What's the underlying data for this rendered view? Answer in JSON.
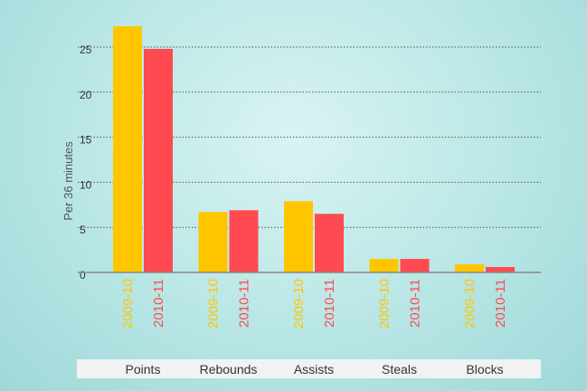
{
  "chart_data": {
    "type": "bar",
    "ylabel": "Per 36 minutes",
    "ylim": [
      0,
      25
    ],
    "yticks": [
      0,
      5,
      10,
      15,
      20,
      25
    ],
    "grid": true,
    "categories": [
      "Points",
      "Rebounds",
      "Assists",
      "Steals",
      "Blocks"
    ],
    "series": [
      {
        "name": "2009-10",
        "color": "#ffc600",
        "values": [
          27.3,
          6.7,
          7.9,
          1.5,
          0.9
        ]
      },
      {
        "name": "2010-11",
        "color": "#ff4a52",
        "values": [
          24.8,
          6.9,
          6.5,
          1.5,
          0.6
        ]
      }
    ]
  }
}
